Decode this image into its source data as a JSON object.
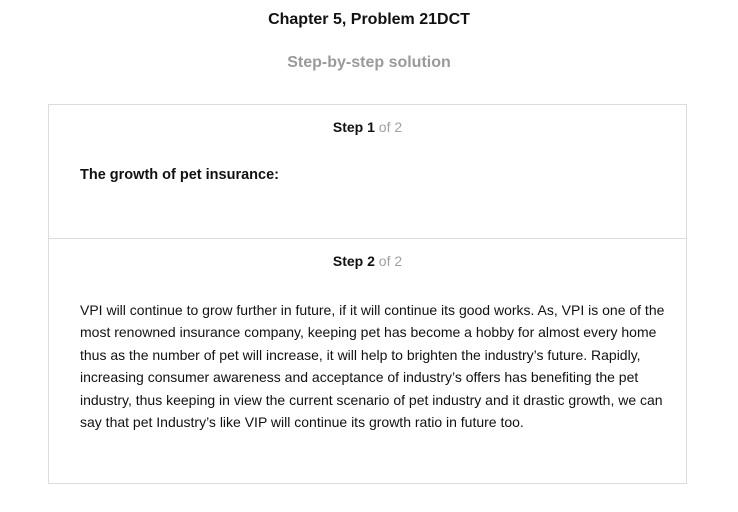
{
  "header": {
    "chapter_title": "Chapter 5, Problem 21DCT",
    "subtitle": "Step-by-step solution"
  },
  "steps": [
    {
      "label": "Step",
      "number": "1",
      "of_text": "of 2",
      "heading": "The growth of pet insurance:"
    },
    {
      "label": "Step",
      "number": "2",
      "of_text": "of 2",
      "body": "VPI will continue to grow further in future, if it will continue its good works. As, VPI is one of the most renowned insurance company, keeping pet has become a hobby for almost every home thus as the number of pet will increase, it will help to brighten the industry’s future. Rapidly, increasing consumer awareness and acceptance of industry’s offers has benefiting the pet industry, thus keeping in view the current scenario of pet industry and it drastic growth, we can say that pet Industry’s like VIP will continue its growth ratio in future too."
    }
  ]
}
